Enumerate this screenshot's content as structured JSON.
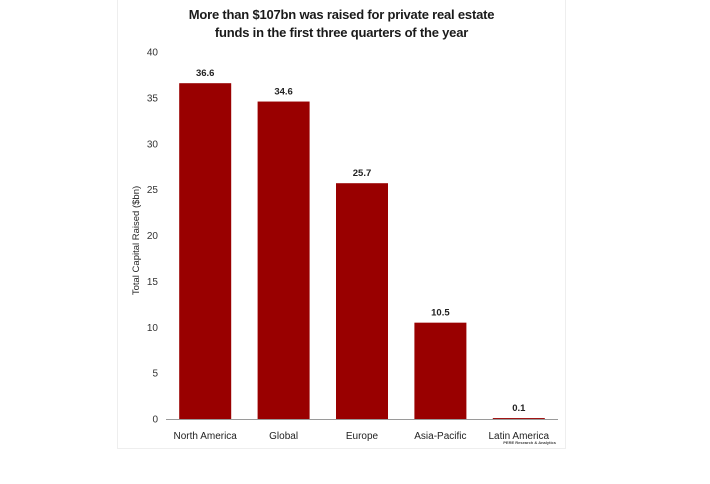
{
  "chart_data": {
    "type": "bar",
    "title_lines": [
      "More than $107bn was raised for private real estate",
      "funds in the first three quarters of the year"
    ],
    "xlabel": "",
    "ylabel": "Total Capital Raised ($bn)",
    "categories": [
      "North America",
      "Global",
      "Europe",
      "Asia-Pacific",
      "Latin America"
    ],
    "values": [
      36.6,
      34.6,
      25.7,
      10.5,
      0.1
    ],
    "value_labels": [
      "36.6",
      "34.6",
      "25.7",
      "10.5",
      "0.1"
    ],
    "ylim": [
      0,
      40
    ],
    "yticks": [
      0,
      5,
      10,
      15,
      20,
      25,
      30,
      35,
      40
    ],
    "grid": false,
    "legend": "none",
    "bar_color": "#990000",
    "source_note": "PERE Research & Analytics"
  }
}
